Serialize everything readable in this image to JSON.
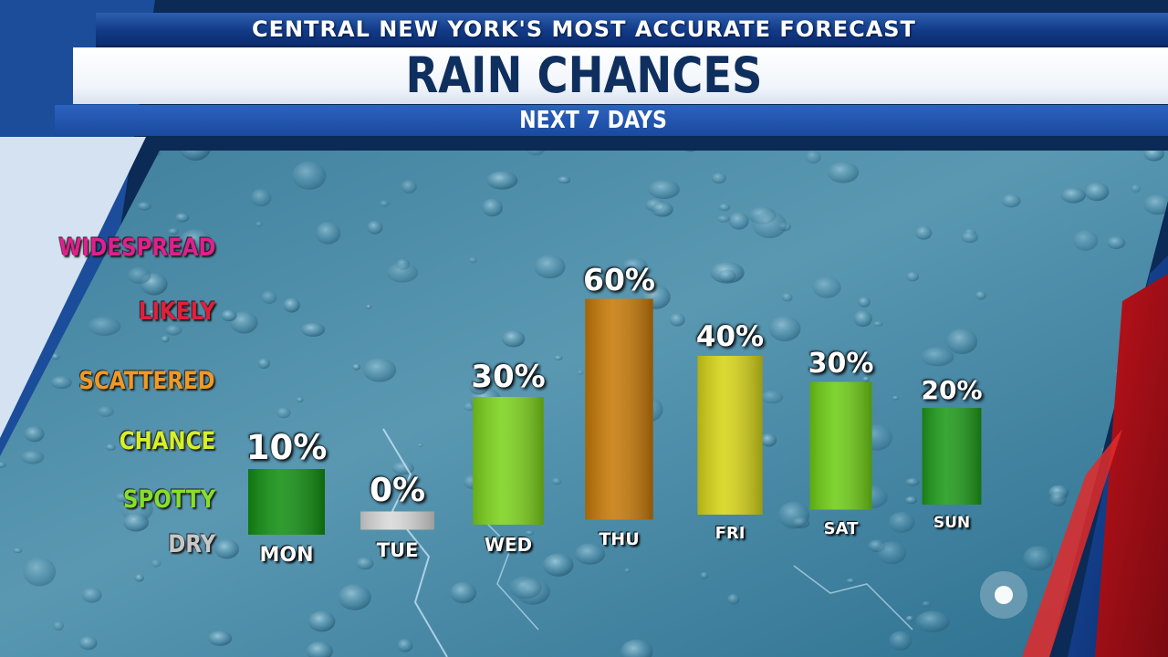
{
  "header": {
    "top_line": "CENTRAL NEW YORK'S MOST ACCURATE FORECAST",
    "title": "RAIN CHANCES",
    "subtitle": "NEXT 7 DAYS"
  },
  "levels": [
    {
      "label": "WIDESPREAD",
      "color": "#e0208e"
    },
    {
      "label": "LIKELY",
      "color": "#e0203c"
    },
    {
      "label": "SCATTERED",
      "color": "#f09a24"
    },
    {
      "label": "CHANCE",
      "color": "#d6ef2a"
    },
    {
      "label": "SPOTTY",
      "color": "#86e02a"
    },
    {
      "label": "DRY",
      "color": "#c8c8c8"
    }
  ],
  "chart_data": {
    "type": "bar",
    "categories": [
      "MON",
      "TUE",
      "WED",
      "THU",
      "FRI",
      "SAT",
      "SUN"
    ],
    "values": [
      10,
      0,
      30,
      60,
      40,
      30,
      20
    ],
    "value_labels": [
      "10%",
      "0%",
      "30%",
      "60%",
      "40%",
      "30%",
      "20%"
    ],
    "bar_colors": [
      "#138f12",
      "#d9d9d9",
      "#7cd21c",
      "#c77a08",
      "#d6d418",
      "#6fcd16",
      "#1e9a1a"
    ],
    "title": "RAIN CHANCES",
    "subtitle": "NEXT 7 DAYS",
    "y_unit": "%",
    "grid": false,
    "legend": "none"
  }
}
